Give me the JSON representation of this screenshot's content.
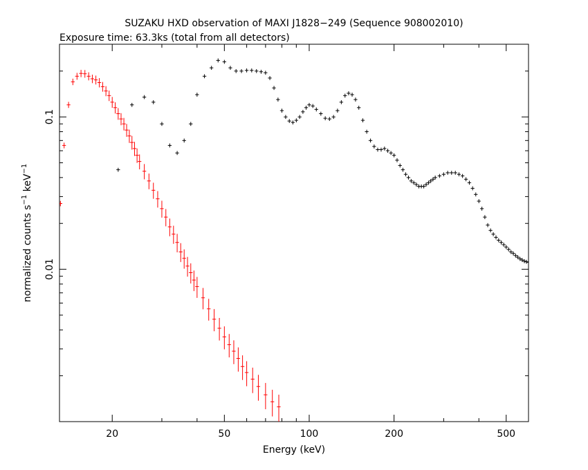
{
  "chart_data": {
    "type": "scatter",
    "title": "SUZAKU HXD observation of MAXI J1828−249 (Sequence 908002010)",
    "subtitle": "Exposure time: 63.3ks (total from all detectors)",
    "xlabel": "Energy (keV)",
    "ylabel_main": "normalized counts s",
    "ylabel_sup1": "−1",
    "ylabel_mid": " keV",
    "ylabel_sup2": "−1",
    "x_scale": "log",
    "y_scale": "log",
    "xlim": [
      13,
      600
    ],
    "ylim": [
      0.001,
      0.3
    ],
    "x_ticks": [
      20,
      50,
      100,
      200,
      500
    ],
    "x_tick_labels": [
      "20",
      "50",
      "100",
      "200",
      "500"
    ],
    "y_ticks": [
      0.01,
      0.1
    ],
    "y_tick_labels": [
      "0.01",
      "0.1"
    ],
    "grid": false,
    "series": [
      {
        "color": "#ff0000",
        "points": [
          [
            13.1,
            0.027
          ],
          [
            13.5,
            0.065
          ],
          [
            14.0,
            0.12
          ],
          [
            14.5,
            0.17
          ],
          [
            15.0,
            0.185
          ],
          [
            15.5,
            0.193
          ],
          [
            16.0,
            0.192
          ],
          [
            16.5,
            0.185
          ],
          [
            17.0,
            0.178
          ],
          [
            17.5,
            0.175
          ],
          [
            18.0,
            0.168
          ],
          [
            18.5,
            0.158
          ],
          [
            19.0,
            0.148
          ],
          [
            19.5,
            0.138
          ],
          [
            20.0,
            0.125
          ],
          [
            20.5,
            0.115
          ],
          [
            21.0,
            0.105
          ],
          [
            21.5,
            0.097
          ],
          [
            22.0,
            0.09
          ],
          [
            22.5,
            0.082
          ],
          [
            23.0,
            0.075
          ],
          [
            23.5,
            0.068
          ],
          [
            24.0,
            0.062
          ],
          [
            24.5,
            0.056
          ],
          [
            25.0,
            0.051
          ],
          [
            26.0,
            0.044
          ],
          [
            27.0,
            0.038
          ],
          [
            28.0,
            0.033
          ],
          [
            29.0,
            0.029
          ],
          [
            30.0,
            0.025
          ],
          [
            31.0,
            0.022
          ],
          [
            32.0,
            0.019
          ],
          [
            33.0,
            0.017
          ],
          [
            34.0,
            0.015
          ],
          [
            35.0,
            0.013
          ],
          [
            36.0,
            0.0118
          ],
          [
            37.0,
            0.0105
          ],
          [
            38.0,
            0.0095
          ],
          [
            39.0,
            0.0085
          ],
          [
            40.0,
            0.0077
          ],
          [
            42.0,
            0.0065
          ],
          [
            44.0,
            0.0055
          ],
          [
            46.0,
            0.0047
          ],
          [
            48.0,
            0.0041
          ],
          [
            50.0,
            0.0036
          ],
          [
            52.0,
            0.0032
          ],
          [
            54.0,
            0.0029
          ],
          [
            56.0,
            0.0026
          ],
          [
            58.0,
            0.0023
          ],
          [
            60.0,
            0.0021
          ],
          [
            63.0,
            0.0019
          ],
          [
            66.0,
            0.0017
          ],
          [
            70.0,
            0.0015
          ],
          [
            74.0,
            0.00135
          ],
          [
            78.0,
            0.00125
          ]
        ]
      },
      {
        "color": "#000000",
        "points": [
          [
            21.0,
            0.045
          ],
          [
            23.5,
            0.12
          ],
          [
            26.0,
            0.135
          ],
          [
            28.0,
            0.125
          ],
          [
            30.0,
            0.09
          ],
          [
            32.0,
            0.065
          ],
          [
            34.0,
            0.058
          ],
          [
            36.0,
            0.07
          ],
          [
            38.0,
            0.09
          ],
          [
            40.0,
            0.14
          ],
          [
            42.5,
            0.185
          ],
          [
            45.0,
            0.21
          ],
          [
            47.5,
            0.235
          ],
          [
            50.0,
            0.23
          ],
          [
            52.5,
            0.21
          ],
          [
            55.0,
            0.2
          ],
          [
            57.5,
            0.2
          ],
          [
            60.0,
            0.202
          ],
          [
            62.5,
            0.202
          ],
          [
            65.0,
            0.2
          ],
          [
            67.5,
            0.198
          ],
          [
            70.0,
            0.195
          ],
          [
            72.5,
            0.18
          ],
          [
            75.0,
            0.155
          ],
          [
            77.5,
            0.13
          ],
          [
            80.0,
            0.11
          ],
          [
            82.5,
            0.1
          ],
          [
            85.0,
            0.094
          ],
          [
            87.5,
            0.092
          ],
          [
            90.0,
            0.095
          ],
          [
            92.5,
            0.1
          ],
          [
            95.0,
            0.108
          ],
          [
            97.5,
            0.115
          ],
          [
            100.0,
            0.12
          ],
          [
            103.0,
            0.118
          ],
          [
            106.0,
            0.112
          ],
          [
            110.0,
            0.105
          ],
          [
            114.0,
            0.098
          ],
          [
            118.0,
            0.097
          ],
          [
            122.0,
            0.1
          ],
          [
            126.0,
            0.11
          ],
          [
            130.0,
            0.125
          ],
          [
            134.0,
            0.138
          ],
          [
            138.0,
            0.143
          ],
          [
            142.0,
            0.14
          ],
          [
            146.0,
            0.13
          ],
          [
            150.0,
            0.115
          ],
          [
            155.0,
            0.095
          ],
          [
            160.0,
            0.08
          ],
          [
            165.0,
            0.07
          ],
          [
            170.0,
            0.064
          ],
          [
            175.0,
            0.061
          ],
          [
            180.0,
            0.061
          ],
          [
            185.0,
            0.062
          ],
          [
            190.0,
            0.06
          ],
          [
            195.0,
            0.058
          ],
          [
            200.0,
            0.056
          ],
          [
            205.0,
            0.052
          ],
          [
            210.0,
            0.048
          ],
          [
            215.0,
            0.045
          ],
          [
            220.0,
            0.042
          ],
          [
            225.0,
            0.04
          ],
          [
            230.0,
            0.038
          ],
          [
            235.0,
            0.037
          ],
          [
            240.0,
            0.036
          ],
          [
            245.0,
            0.035
          ],
          [
            250.0,
            0.035
          ],
          [
            255.0,
            0.035
          ],
          [
            260.0,
            0.036
          ],
          [
            265.0,
            0.037
          ],
          [
            270.0,
            0.038
          ],
          [
            275.0,
            0.039
          ],
          [
            280.0,
            0.04
          ],
          [
            290.0,
            0.041
          ],
          [
            300.0,
            0.042
          ],
          [
            310.0,
            0.043
          ],
          [
            320.0,
            0.043
          ],
          [
            330.0,
            0.043
          ],
          [
            340.0,
            0.042
          ],
          [
            350.0,
            0.041
          ],
          [
            360.0,
            0.039
          ],
          [
            370.0,
            0.037
          ],
          [
            380.0,
            0.034
          ],
          [
            390.0,
            0.031
          ],
          [
            400.0,
            0.028
          ],
          [
            410.0,
            0.025
          ],
          [
            420.0,
            0.022
          ],
          [
            430.0,
            0.0195
          ],
          [
            440.0,
            0.018
          ],
          [
            450.0,
            0.017
          ],
          [
            460.0,
            0.0162
          ],
          [
            470.0,
            0.0155
          ],
          [
            480.0,
            0.015
          ],
          [
            490.0,
            0.0145
          ],
          [
            500.0,
            0.014
          ],
          [
            510.0,
            0.0135
          ],
          [
            520.0,
            0.013
          ],
          [
            530.0,
            0.0127
          ],
          [
            540.0,
            0.0123
          ],
          [
            550.0,
            0.012
          ],
          [
            560.0,
            0.0117
          ],
          [
            570.0,
            0.0115
          ],
          [
            580.0,
            0.0113
          ],
          [
            590.0,
            0.0112
          ],
          [
            600.0,
            0.0111
          ]
        ]
      }
    ]
  }
}
